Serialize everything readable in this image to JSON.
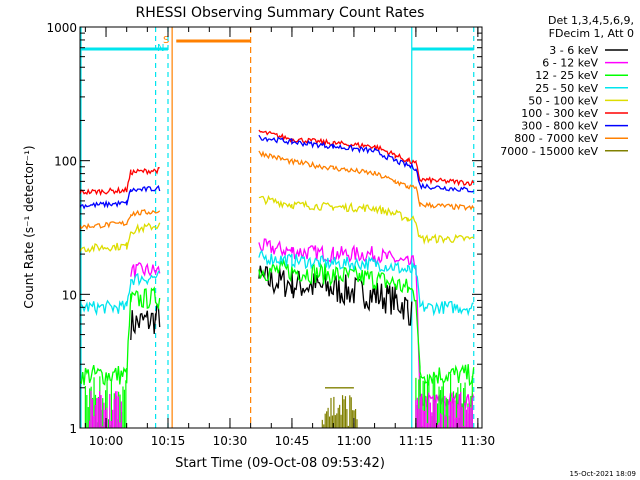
{
  "chart_data": {
    "type": "line",
    "title": "RHESSI Observing Summary Count Rates",
    "xlabel": "Start Time (09-Oct-08 09:53:42)",
    "ylabel": "Count Rate (s⁻¹ detector⁻¹)",
    "y_scale": "log",
    "ylim": [
      1,
      1000
    ],
    "xlim": [
      "09:53:42",
      "11:31:00"
    ],
    "x_ticks": [
      "10:00",
      "10:15",
      "10:30",
      "10:45",
      "11:00",
      "11:15",
      "11:30"
    ],
    "y_ticks": [
      "1",
      "10",
      "100",
      "1000"
    ],
    "legend_position": "right",
    "legend_header": [
      "Det 1,3,4,5,6,9,",
      "FDecim 1, Att 0"
    ],
    "flag_labels": {
      "s": "S",
      "n": "N"
    },
    "footer_date": "15-Oct-2021 18:09",
    "colors": {
      "axis": "#000000",
      "saa_flag": "#ff8000",
      "night_flag": "#00e5ee"
    },
    "series": [
      {
        "name": "3 - 6 keV",
        "color": "#000000",
        "x": [
          "09:53:42",
          "10:05",
          "10:06",
          "10:12",
          "10:13",
          "10:32",
          "10:37",
          "10:45",
          "10:55",
          "11:05",
          "11:10",
          "11:13",
          "11:14",
          "11:15"
        ],
        "values": [
          null,
          null,
          6,
          6.5,
          7,
          null,
          13,
          12,
          11,
          10,
          9,
          8,
          7,
          null
        ],
        "noise": 0.12
      },
      {
        "name": "6 - 12 keV",
        "color": "#ff00ff",
        "x": [
          "09:53:42",
          "10:05",
          "10:06",
          "10:13",
          "10:14",
          "10:32",
          "10:37",
          "10:45",
          "10:55",
          "11:05",
          "11:10",
          "11:13",
          "11:15",
          "11:16",
          "11:29"
        ],
        "values": [
          null,
          null,
          15,
          15,
          null,
          null,
          23,
          21,
          20,
          20,
          18,
          17,
          17,
          1.6,
          1.6
        ],
        "noise": 0.06
      },
      {
        "name": "12 - 25 keV",
        "color": "#00ff00",
        "x": [
          "09:53:42",
          "10:05",
          "10:06",
          "10:13",
          "10:14",
          "10:32",
          "10:37",
          "10:45",
          "10:55",
          "11:05",
          "11:10",
          "11:13",
          "11:15",
          "11:16",
          "11:29"
        ],
        "values": [
          2.5,
          2.5,
          9,
          9.5,
          null,
          null,
          15,
          15,
          14,
          13,
          12,
          11,
          10,
          2.5,
          2.5
        ],
        "noise": 0.08
      },
      {
        "name": "25 - 50 keV",
        "color": "#00e5ee",
        "x": [
          "09:53:42",
          "10:05",
          "10:06",
          "10:13",
          "10:14",
          "10:32",
          "10:37",
          "10:45",
          "10:55",
          "11:05",
          "11:10",
          "11:13",
          "11:15",
          "11:16",
          "11:29"
        ],
        "values": [
          8,
          8,
          13,
          13.5,
          null,
          null,
          19,
          18,
          17,
          17,
          16,
          15,
          15,
          8,
          8
        ],
        "noise": 0.05
      },
      {
        "name": "50 - 100 keV",
        "color": "#dddd00",
        "x": [
          "09:53:42",
          "10:05",
          "10:06",
          "10:13",
          "10:14",
          "10:32",
          "10:37",
          "10:45",
          "10:55",
          "11:05",
          "11:10",
          "11:13",
          "11:15",
          "11:16",
          "11:29"
        ],
        "values": [
          22,
          23,
          30,
          33,
          null,
          null,
          52,
          47,
          45,
          44,
          40,
          37,
          36,
          26,
          26
        ],
        "noise": 0.03
      },
      {
        "name": "100 - 300 keV",
        "color": "#ff0000",
        "x": [
          "09:53:42",
          "10:05",
          "10:06",
          "10:13",
          "10:14",
          "10:32",
          "10:37",
          "10:45",
          "10:55",
          "11:05",
          "11:10",
          "11:13",
          "11:15",
          "11:16",
          "11:29"
        ],
        "values": [
          58,
          60,
          82,
          85,
          null,
          null,
          165,
          145,
          135,
          128,
          110,
          100,
          95,
          72,
          68
        ],
        "noise": 0.02
      },
      {
        "name": "300 - 800 keV",
        "color": "#0000ff",
        "x": [
          "09:53:42",
          "10:05",
          "10:06",
          "10:13",
          "10:14",
          "10:32",
          "10:37",
          "10:45",
          "10:55",
          "11:05",
          "11:10",
          "11:13",
          "11:15",
          "11:16",
          "11:29"
        ],
        "values": [
          46,
          48,
          60,
          62,
          null,
          null,
          150,
          138,
          128,
          118,
          100,
          92,
          88,
          65,
          60
        ],
        "noise": 0.02
      },
      {
        "name": "800 - 7000 keV",
        "color": "#ff8000",
        "x": [
          "09:53:42",
          "10:05",
          "10:06",
          "10:13",
          "10:14",
          "10:32",
          "10:37",
          "10:45",
          "10:55",
          "11:05",
          "11:10",
          "11:13",
          "11:15",
          "11:16",
          "11:29"
        ],
        "values": [
          32,
          34,
          40,
          42,
          null,
          null,
          115,
          98,
          88,
          80,
          70,
          64,
          62,
          47,
          44
        ],
        "noise": 0.02
      },
      {
        "name": "7000 - 15000 keV",
        "color": "#808000",
        "x": [
          "09:53:42",
          "10:30",
          "10:30",
          "10:52",
          "10:53",
          "11:00",
          "11:01",
          "11:29"
        ],
        "values": [
          null,
          null,
          null,
          null,
          2,
          2,
          null,
          null
        ],
        "noise": 0.0
      }
    ],
    "annotations": {
      "night_intervals": [
        [
          "09:53:42",
          "10:15"
        ],
        [
          "11:14",
          "11:29"
        ]
      ],
      "saa_intervals": [
        [
          "10:17",
          "10:35"
        ]
      ],
      "night_lines": [
        "10:12",
        "10:15",
        "11:14",
        "11:29"
      ],
      "saa_lines": [
        "10:16",
        "10:35"
      ]
    }
  }
}
